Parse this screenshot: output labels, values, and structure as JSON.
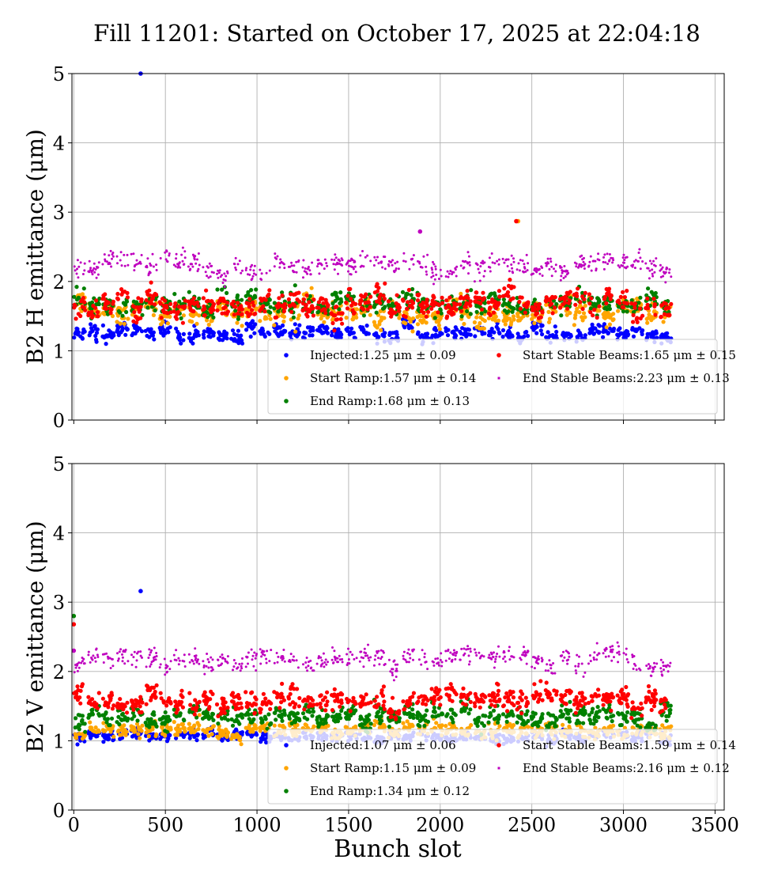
{
  "title": "Fill 11201: Started on October 17, 2025 at 22:04:18",
  "xlabel": "Bunch slot",
  "colors": {
    "Injected": "#0000ff",
    "Start Ramp": "#ffa500",
    "End Ramp": "#008000",
    "Start Stable Beams": "#ff0000",
    "End Stable Beams": "#bf00bf"
  },
  "chart_data": [
    {
      "type": "scatter",
      "ylabel": "B2 H emittance (μm)",
      "xlim": [
        -10,
        3550
      ],
      "ylim": [
        0,
        5
      ],
      "xticks": [
        "0",
        "500",
        "1000",
        "1500",
        "2000",
        "2500",
        "3000",
        "3500"
      ],
      "yticks": [
        "0",
        "1",
        "2",
        "3",
        "4",
        "5"
      ],
      "x_ticklabels_shown": false,
      "grid": true,
      "legend_position": "lower-right",
      "bunch_range": [
        0,
        3230
      ],
      "series": [
        {
          "name": "Injected",
          "legend": "Injected:1.25 μm ± 0.09",
          "mean": 1.25,
          "std": 0.09,
          "color": "#0000ff",
          "outliers": [
            [
              365,
              5.0
            ]
          ]
        },
        {
          "name": "Start Ramp",
          "legend": "Start Ramp:1.57 μm ± 0.14",
          "mean": 1.57,
          "std": 0.14,
          "color": "#ffa500",
          "outliers": [
            [
              2425,
              2.87
            ]
          ]
        },
        {
          "name": "End Ramp",
          "legend": "End Ramp:1.68 μm ± 0.13",
          "mean": 1.68,
          "std": 0.13,
          "color": "#008000",
          "outliers": []
        },
        {
          "name": "Start Stable Beams",
          "legend": "Start Stable Beams:1.65 μm ± 0.15",
          "mean": 1.65,
          "std": 0.15,
          "color": "#ff0000",
          "outliers": [
            [
              2415,
              2.87
            ]
          ]
        },
        {
          "name": "End Stable Beams",
          "legend": "End Stable Beams:2.23 μm ± 0.13",
          "mean": 2.23,
          "std": 0.13,
          "color": "#bf00bf",
          "outliers": [
            [
              1890,
              2.72
            ]
          ]
        }
      ]
    },
    {
      "type": "scatter",
      "ylabel": "B2 V emittance (μm)",
      "xlim": [
        -10,
        3550
      ],
      "ylim": [
        0,
        5
      ],
      "xticks": [
        "0",
        "500",
        "1000",
        "1500",
        "2000",
        "2500",
        "3000",
        "3500"
      ],
      "yticks": [
        "0",
        "1",
        "2",
        "3",
        "4",
        "5"
      ],
      "x_ticklabels_shown": true,
      "grid": true,
      "legend_position": "lower-right",
      "bunch_range": [
        0,
        3230
      ],
      "series": [
        {
          "name": "Injected",
          "legend": "Injected:1.07 μm ± 0.06",
          "mean": 1.07,
          "std": 0.06,
          "color": "#0000ff",
          "outliers": [
            [
              365,
              3.16
            ]
          ]
        },
        {
          "name": "Start Ramp",
          "legend": "Start Ramp:1.15 μm ± 0.09",
          "mean": 1.15,
          "std": 0.09,
          "color": "#ffa500",
          "outliers": []
        },
        {
          "name": "End Ramp",
          "legend": "End Ramp:1.34 μm ± 0.12",
          "mean": 1.34,
          "std": 0.12,
          "color": "#008000",
          "outliers": [
            [
              0,
              2.8
            ]
          ]
        },
        {
          "name": "Start Stable Beams",
          "legend": "Start Stable Beams:1.59 μm ± 0.14",
          "mean": 1.59,
          "std": 0.14,
          "color": "#ff0000",
          "outliers": [
            [
              0,
              2.68
            ]
          ]
        },
        {
          "name": "End Stable Beams",
          "legend": "End Stable Beams:2.16 μm ± 0.12",
          "mean": 2.16,
          "std": 0.12,
          "color": "#bf00bf",
          "outliers": [
            [
              0,
              2.3
            ]
          ]
        }
      ]
    }
  ]
}
